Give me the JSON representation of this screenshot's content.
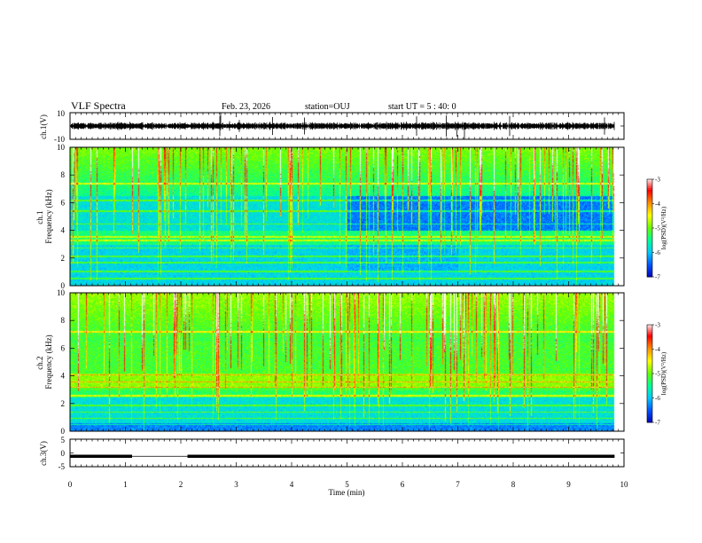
{
  "header": {
    "title": "VLF Spectra",
    "date": "Feb. 23, 2026",
    "station": "station=OUJ",
    "start": "start UT =  5 : 40: 0"
  },
  "chart_data": [
    {
      "type": "line",
      "name": "ch1-waveform",
      "ylabel": "ch.1(V)",
      "ylim": [
        -10,
        10
      ],
      "yticks": [
        "10",
        "-10"
      ],
      "xlim": [
        0,
        10
      ],
      "baseline": 0,
      "color": "#000000"
    },
    {
      "type": "heatmap",
      "name": "ch1-spectrogram",
      "ylabel": "ch.1\nFrequency (kHz)",
      "ylim": [
        0,
        10
      ],
      "yticks": [
        "0",
        "2",
        "4",
        "6",
        "8",
        "10"
      ],
      "xlim": [
        0,
        10
      ],
      "data_end_min": 9.83,
      "colorbar": {
        "label": "log(PSD)(V²/Hz)",
        "ticks": [
          "-3",
          "-4",
          "-5",
          "-6",
          "-7"
        ],
        "range": [
          -7,
          -3
        ]
      }
    },
    {
      "type": "heatmap",
      "name": "ch2-spectrogram",
      "ylabel": "ch.2\nFrequency (kHz)",
      "ylim": [
        0,
        10
      ],
      "yticks": [
        "0",
        "2",
        "4",
        "6",
        "8",
        "10"
      ],
      "xlim": [
        0,
        10
      ],
      "data_end_min": 9.83,
      "colorbar": {
        "label": "log(PSD)(V²/Hz)",
        "ticks": [
          "-3",
          "-4",
          "-5",
          "-6",
          "-7"
        ],
        "range": [
          -7,
          -3
        ]
      }
    },
    {
      "type": "line",
      "name": "ch3-signal",
      "ylabel": "ch.3(V)",
      "ylim": [
        -5,
        5
      ],
      "yticks": [
        "5",
        "0",
        "-5"
      ],
      "xlim": [
        0,
        10
      ],
      "level": -1.2,
      "gaps": [
        [
          1.12,
          2.12
        ]
      ],
      "color": "#000000"
    }
  ],
  "xaxis": {
    "label": "Time (min)",
    "ticks": [
      "0",
      "1",
      "2",
      "3",
      "4",
      "5",
      "6",
      "7",
      "8",
      "9",
      "10"
    ]
  },
  "colormap": [
    "#0000b4",
    "#0050ff",
    "#00c8ff",
    "#00ff96",
    "#64ff00",
    "#ffff00",
    "#ff8c00",
    "#ff0000",
    "#ffffff"
  ]
}
